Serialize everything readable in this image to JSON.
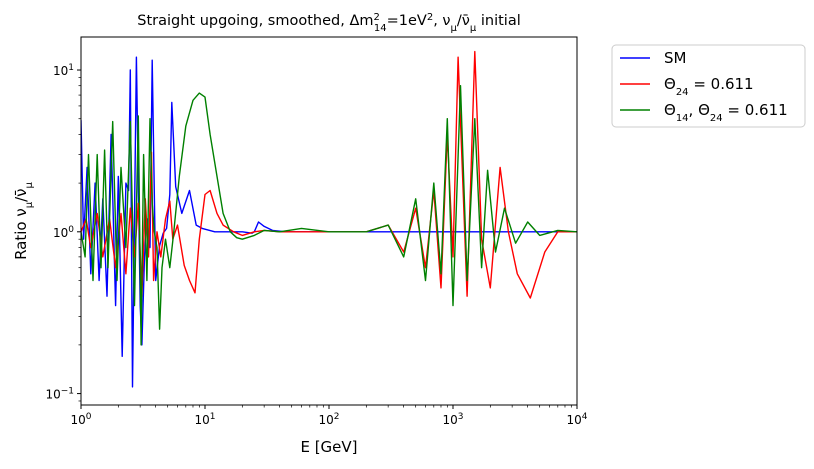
{
  "chart_data": {
    "type": "line",
    "title_parts": [
      "Straight upgoing, smoothed, Δm",
      "2",
      "14",
      "=1eV",
      "2",
      ", ν",
      "μ",
      "/ν̄",
      "μ",
      " initial"
    ],
    "xlabel": "E [GeV]",
    "ylabel_parts": [
      "Ratio ν",
      "μ",
      "/ν̄",
      "μ"
    ],
    "x_scale": "log",
    "y_scale": "log",
    "xlim": [
      1,
      10000
    ],
    "ylim": [
      0.085,
      16
    ],
    "x_ticks": [
      {
        "value": 1,
        "base": "10",
        "exp": "0"
      },
      {
        "value": 10,
        "base": "10",
        "exp": "1"
      },
      {
        "value": 100,
        "base": "10",
        "exp": "2"
      },
      {
        "value": 1000,
        "base": "10",
        "exp": "3"
      },
      {
        "value": 10000,
        "base": "10",
        "exp": "4"
      }
    ],
    "y_ticks": [
      {
        "value": 0.1,
        "base": "10",
        "exp": "−1"
      },
      {
        "value": 1,
        "base": "10",
        "exp": "0"
      },
      {
        "value": 10,
        "base": "10",
        "exp": "1"
      }
    ],
    "grid": false,
    "legend_position": "outside-top-right",
    "series": [
      {
        "name": "SM",
        "legend_parts": [
          "SM"
        ],
        "color": "#0000ff",
        "x": [
          1.0,
          1.05,
          1.12,
          1.2,
          1.3,
          1.4,
          1.5,
          1.62,
          1.75,
          1.9,
          2.0,
          2.15,
          2.3,
          2.42,
          2.5,
          2.6,
          2.8,
          3.0,
          3.1,
          3.25,
          3.4,
          3.6,
          3.75,
          4.0,
          4.3,
          4.6,
          4.9,
          5.2,
          5.4,
          5.8,
          6.5,
          7.5,
          8.5,
          9.5,
          12,
          16,
          20,
          24,
          25,
          27,
          30,
          35,
          45,
          60,
          80,
          100,
          150,
          200,
          300,
          500,
          1000,
          3000,
          10000
        ],
        "y": [
          4.9,
          0.9,
          2.5,
          0.55,
          2.0,
          0.5,
          1.6,
          0.4,
          4.0,
          0.35,
          2.2,
          0.17,
          2.0,
          1.8,
          10.0,
          0.11,
          12.0,
          0.35,
          0.2,
          0.7,
          1.2,
          0.8,
          11.5,
          0.5,
          0.82,
          0.98,
          1.05,
          1.7,
          6.3,
          1.9,
          1.3,
          1.8,
          1.1,
          1.05,
          1.0,
          1.0,
          1.0,
          0.98,
          1.0,
          1.15,
          1.08,
          1.02,
          1.0,
          1.0,
          1.0,
          1.0,
          1.0,
          1.0,
          1.0,
          1.0,
          1.0,
          1.0,
          1.0
        ]
      },
      {
        "name": "Θ24 = 0.611",
        "legend_parts": [
          "Θ",
          "24",
          " = 0.611"
        ],
        "color": "#ff0000",
        "x": [
          1.0,
          1.1,
          1.2,
          1.35,
          1.5,
          1.7,
          1.9,
          2.1,
          2.3,
          2.5,
          2.7,
          2.9,
          3.1,
          3.3,
          3.5,
          3.7,
          3.85,
          4.1,
          4.4,
          4.8,
          5.2,
          5.5,
          6.0,
          6.8,
          7.5,
          8.3,
          9.0,
          10.0,
          11.0,
          12.5,
          14.0,
          17.0,
          20.0,
          25.0,
          30.0,
          40.0,
          60.0,
          100.0,
          150.0,
          200.0,
          300.0,
          400.0,
          500.0,
          600.0,
          700.0,
          800.0,
          900.0,
          1000.0,
          1100.0,
          1300.0,
          1500.0,
          1700.0,
          2000.0,
          2400.0,
          2800.0,
          3300.0,
          4200.0,
          5500.0,
          7000.0,
          10000.0
        ],
        "y": [
          1.0,
          1.2,
          0.8,
          1.3,
          0.7,
          1.2,
          0.6,
          1.3,
          0.55,
          1.4,
          0.7,
          1.5,
          0.4,
          1.6,
          0.7,
          3.1,
          0.5,
          1.0,
          0.7,
          1.2,
          1.55,
          0.9,
          1.1,
          0.62,
          0.5,
          0.42,
          0.9,
          1.7,
          1.8,
          1.3,
          1.1,
          1.0,
          0.95,
          1.0,
          1.02,
          1.0,
          1.0,
          1.0,
          1.0,
          1.0,
          1.1,
          0.75,
          1.4,
          0.6,
          1.8,
          0.45,
          4.0,
          0.7,
          12.0,
          0.4,
          13.0,
          0.9,
          0.45,
          2.5,
          1.0,
          0.55,
          0.39,
          0.75,
          1.0,
          1.0
        ]
      },
      {
        "name": "Θ14, Θ24 = 0.611",
        "legend_parts": [
          "Θ",
          "14",
          ", Θ",
          "24",
          " = 0.611"
        ],
        "color": "#008000",
        "x": [
          1.0,
          1.08,
          1.15,
          1.25,
          1.35,
          1.45,
          1.55,
          1.65,
          1.8,
          1.95,
          2.1,
          2.3,
          2.5,
          2.7,
          2.9,
          3.05,
          3.2,
          3.4,
          3.6,
          3.75,
          3.9,
          4.1,
          4.3,
          4.5,
          4.8,
          5.2,
          5.6,
          6.2,
          7.0,
          8.0,
          9.0,
          10.0,
          11.0,
          12.5,
          14.0,
          16.0,
          18.0,
          20.0,
          25.0,
          30.0,
          40.0,
          60.0,
          100.0,
          150.0,
          200.0,
          300.0,
          400.0,
          500.0,
          600.0,
          700.0,
          800.0,
          900.0,
          1000.0,
          1150.0,
          1300.0,
          1500.0,
          1700.0,
          1900.0,
          2200.0,
          2600.0,
          3200.0,
          4000.0,
          5000.0,
          7000.0,
          10000.0
        ],
        "y": [
          1.0,
          0.7,
          3.0,
          0.5,
          3.0,
          0.6,
          3.2,
          0.6,
          4.8,
          0.5,
          2.5,
          0.8,
          4.8,
          0.35,
          5.2,
          0.2,
          3.0,
          0.5,
          5.0,
          1.5,
          1.0,
          0.8,
          0.25,
          0.6,
          0.9,
          0.6,
          1.0,
          2.2,
          4.5,
          6.5,
          7.2,
          6.8,
          4.0,
          2.2,
          1.3,
          1.0,
          0.92,
          0.9,
          0.95,
          1.02,
          1.0,
          1.05,
          1.0,
          1.0,
          1.0,
          1.1,
          0.7,
          1.6,
          0.5,
          2.0,
          0.55,
          5.0,
          0.35,
          8.0,
          0.5,
          5.0,
          0.6,
          2.4,
          0.75,
          1.4,
          0.85,
          1.15,
          0.95,
          1.02,
          1.0
        ]
      }
    ]
  }
}
